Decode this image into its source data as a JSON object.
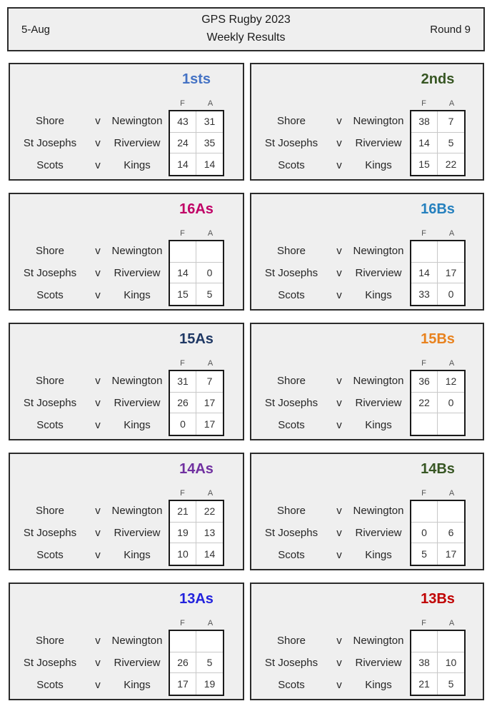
{
  "header": {
    "date": "5-Aug",
    "title_line1": "GPS Rugby 2023",
    "title_line2": "Weekly Results",
    "round": "Round 9"
  },
  "versus_label": "v",
  "score_columns": [
    "F",
    "A"
  ],
  "colors": {
    "panel_background": "#efefef",
    "panel_border": "#2b2b2b",
    "scorebox_border": "#1a1a1a",
    "scorebox_gridline": "#c8c8c8"
  },
  "panels": [
    {
      "grade": "1sts",
      "color": "#4472C4",
      "fixtures": [
        {
          "home": "Shore",
          "away": "Newington",
          "f": "43",
          "a": "31"
        },
        {
          "home": "St Josephs",
          "away": "Riverview",
          "f": "24",
          "a": "35"
        },
        {
          "home": "Scots",
          "away": "Kings",
          "f": "14",
          "a": "14"
        }
      ]
    },
    {
      "grade": "2nds",
      "color": "#375623",
      "fixtures": [
        {
          "home": "Shore",
          "away": "Newington",
          "f": "38",
          "a": "7"
        },
        {
          "home": "St Josephs",
          "away": "Riverview",
          "f": "14",
          "a": "5"
        },
        {
          "home": "Scots",
          "away": "Kings",
          "f": "15",
          "a": "22"
        }
      ]
    },
    {
      "grade": "16As",
      "color": "#C00066",
      "fixtures": [
        {
          "home": "Shore",
          "away": "Newington",
          "f": "",
          "a": ""
        },
        {
          "home": "St Josephs",
          "away": "Riverview",
          "f": "14",
          "a": "0"
        },
        {
          "home": "Scots",
          "away": "Kings",
          "f": "15",
          "a": "5"
        }
      ]
    },
    {
      "grade": "16Bs",
      "color": "#2580BE",
      "fixtures": [
        {
          "home": "Shore",
          "away": "Newington",
          "f": "",
          "a": ""
        },
        {
          "home": "St Josephs",
          "away": "Riverview",
          "f": "14",
          "a": "17"
        },
        {
          "home": "Scots",
          "away": "Kings",
          "f": "33",
          "a": "0"
        }
      ]
    },
    {
      "grade": "15As",
      "color": "#1F3864",
      "fixtures": [
        {
          "home": "Shore",
          "away": "Newington",
          "f": "31",
          "a": "7"
        },
        {
          "home": "St Josephs",
          "away": "Riverview",
          "f": "26",
          "a": "17"
        },
        {
          "home": "Scots",
          "away": "Kings",
          "f": "0",
          "a": "17"
        }
      ]
    },
    {
      "grade": "15Bs",
      "color": "#E8821E",
      "fixtures": [
        {
          "home": "Shore",
          "away": "Newington",
          "f": "36",
          "a": "12"
        },
        {
          "home": "St Josephs",
          "away": "Riverview",
          "f": "22",
          "a": "0"
        },
        {
          "home": "Scots",
          "away": "Kings",
          "f": "",
          "a": ""
        }
      ]
    },
    {
      "grade": "14As",
      "color": "#7030A0",
      "fixtures": [
        {
          "home": "Shore",
          "away": "Newington",
          "f": "21",
          "a": "22"
        },
        {
          "home": "St Josephs",
          "away": "Riverview",
          "f": "19",
          "a": "13"
        },
        {
          "home": "Scots",
          "away": "Kings",
          "f": "10",
          "a": "14"
        }
      ]
    },
    {
      "grade": "14Bs",
      "color": "#375623",
      "fixtures": [
        {
          "home": "Shore",
          "away": "Newington",
          "f": "",
          "a": ""
        },
        {
          "home": "St Josephs",
          "away": "Riverview",
          "f": "0",
          "a": "6"
        },
        {
          "home": "Scots",
          "away": "Kings",
          "f": "5",
          "a": "17"
        }
      ]
    },
    {
      "grade": "13As",
      "color": "#2222DD",
      "fixtures": [
        {
          "home": "Shore",
          "away": "Newington",
          "f": "",
          "a": ""
        },
        {
          "home": "St Josephs",
          "away": "Riverview",
          "f": "26",
          "a": "5"
        },
        {
          "home": "Scots",
          "away": "Kings",
          "f": "17",
          "a": "19"
        }
      ]
    },
    {
      "grade": "13Bs",
      "color": "#C00000",
      "fixtures": [
        {
          "home": "Shore",
          "away": "Newington",
          "f": "",
          "a": ""
        },
        {
          "home": "St Josephs",
          "away": "Riverview",
          "f": "38",
          "a": "10"
        },
        {
          "home": "Scots",
          "away": "Kings",
          "f": "21",
          "a": "5"
        }
      ]
    }
  ]
}
